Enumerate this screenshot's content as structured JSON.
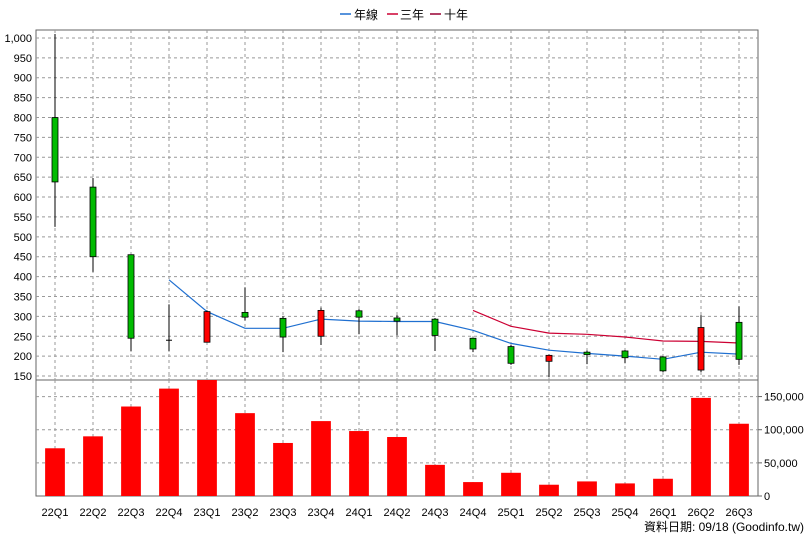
{
  "chart_data": {
    "type": "candlestick+bar",
    "legend": {
      "placement": "top-center",
      "items": [
        {
          "label": "年線",
          "color": "#1f6fd0"
        },
        {
          "label": "三年",
          "color": "#cc0033"
        },
        {
          "label": "十年",
          "color": "#990033"
        }
      ]
    },
    "categories": [
      "22Q1",
      "22Q2",
      "22Q3",
      "22Q4",
      "23Q1",
      "23Q2",
      "23Q3",
      "23Q4",
      "24Q1",
      "24Q2",
      "24Q3",
      "24Q4",
      "25Q1",
      "25Q2",
      "25Q3",
      "25Q4",
      "26Q1",
      "26Q2",
      "26Q3"
    ],
    "price": {
      "ylim": [
        140,
        1020
      ],
      "ticks": [
        150,
        200,
        250,
        300,
        350,
        400,
        450,
        500,
        550,
        600,
        650,
        700,
        750,
        800,
        850,
        900,
        950,
        1000
      ],
      "tick_labels": [
        "150",
        "200",
        "250",
        "300",
        "350",
        "400",
        "450",
        "500",
        "550",
        "600",
        "650",
        "700",
        "750",
        "800",
        "850",
        "900",
        "950",
        "1,000"
      ],
      "candles": [
        {
          "o": 800,
          "c": 638,
          "h": 1010,
          "l": 525
        },
        {
          "o": 625,
          "c": 450,
          "h": 648,
          "l": 412
        },
        {
          "o": 455,
          "c": 245,
          "h": 455,
          "l": 212
        },
        {
          "o": 240,
          "c": 240,
          "h": 330,
          "l": 212
        },
        {
          "o": 235,
          "c": 312,
          "h": 315,
          "l": 235
        },
        {
          "o": 310,
          "c": 298,
          "h": 373,
          "l": 290
        },
        {
          "o": 295,
          "c": 248,
          "h": 300,
          "l": 210
        },
        {
          "o": 250,
          "c": 315,
          "h": 322,
          "l": 228
        },
        {
          "o": 314,
          "c": 298,
          "h": 318,
          "l": 255
        },
        {
          "o": 296,
          "c": 288,
          "h": 303,
          "l": 252
        },
        {
          "o": 293,
          "c": 252,
          "h": 296,
          "l": 213
        },
        {
          "o": 245,
          "c": 218,
          "h": 246,
          "l": 210
        },
        {
          "o": 224,
          "c": 182,
          "h": 228,
          "l": 178
        },
        {
          "o": 187,
          "c": 202,
          "h": 204,
          "l": 147
        },
        {
          "o": 210,
          "c": 204,
          "h": 214,
          "l": 180
        },
        {
          "o": 213,
          "c": 196,
          "h": 215,
          "l": 182
        },
        {
          "o": 198,
          "c": 163,
          "h": 200,
          "l": 160
        },
        {
          "o": 165,
          "c": 272,
          "h": 303,
          "l": 160
        },
        {
          "o": 285,
          "c": 192,
          "h": 325,
          "l": 178
        }
      ],
      "series": [
        {
          "name": "年線",
          "color": "#1f6fd0",
          "values": [
            null,
            null,
            null,
            392,
            312,
            270,
            270,
            293,
            288,
            287,
            287,
            265,
            232,
            215,
            207,
            200,
            192,
            210,
            205
          ]
        },
        {
          "name": "三年",
          "color": "#cc0033",
          "values": [
            null,
            null,
            null,
            null,
            null,
            null,
            null,
            null,
            null,
            null,
            null,
            315,
            275,
            258,
            255,
            248,
            238,
            237,
            233
          ]
        },
        {
          "name": "十年",
          "color": "#990033",
          "values": []
        }
      ],
      "up_color": "#ff0000",
      "down_color": "#00bb00"
    },
    "volume": {
      "ylim": [
        0,
        175000
      ],
      "ticks": [
        0,
        50000,
        100000,
        150000
      ],
      "tick_labels": [
        "0",
        "50,000",
        "100,000",
        "150,000"
      ],
      "values": [
        72000,
        90000,
        135000,
        162000,
        175000,
        125000,
        80000,
        113000,
        98000,
        89000,
        47000,
        21000,
        35000,
        17000,
        22000,
        19000,
        26000,
        148000,
        109000
      ],
      "color": "#ff0000"
    },
    "grid": true
  },
  "footer": {
    "source": "資料日期: 09/18  (Goodinfo.tw)"
  }
}
